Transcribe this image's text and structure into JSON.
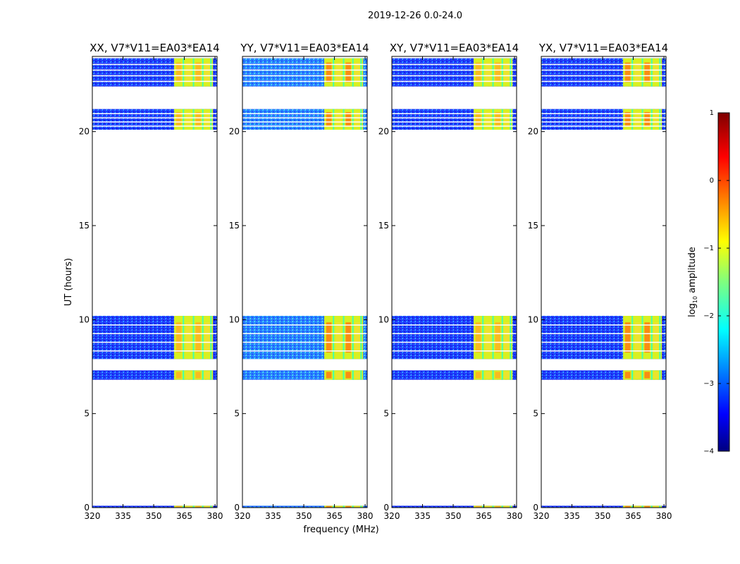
{
  "figure": {
    "suptitle": "2019-12-26 0.0-24.0",
    "xlabel": "frequency (MHz)",
    "ylabel": "UT (hours)"
  },
  "chart_data": {
    "type": "heatmap",
    "xlim": [
      320,
      381
    ],
    "ylim": [
      0,
      24
    ],
    "xticks": [
      320,
      335,
      350,
      365,
      380
    ],
    "yticks": [
      0,
      5,
      10,
      15,
      20
    ],
    "panels": [
      {
        "title": "XX, V7*V11=EA03*EA14"
      },
      {
        "title": "YY, V7*V11=EA03*EA14"
      },
      {
        "title": "XY, V7*V11=EA03*EA14"
      },
      {
        "title": "YX, V7*V11=EA03*EA14"
      }
    ],
    "data_blocks_ut_hours": [
      [
        0.0,
        0.1
      ],
      [
        6.8,
        7.3
      ],
      [
        7.9,
        10.2
      ],
      [
        20.1,
        21.2
      ],
      [
        22.4,
        23.9
      ]
    ],
    "bright_band_mhz": [
      360,
      379
    ],
    "colorbar": {
      "label": "log10 amplitude",
      "label_main": "log",
      "label_sub": "10",
      "label_rest": " amplitude",
      "range": [
        -4,
        1
      ],
      "ticks": [
        "1",
        "0",
        "−1",
        "−2",
        "−3",
        "−4"
      ],
      "tick_values": [
        1,
        0,
        -1,
        -2,
        -3,
        -4
      ],
      "colormap": "jet"
    }
  }
}
